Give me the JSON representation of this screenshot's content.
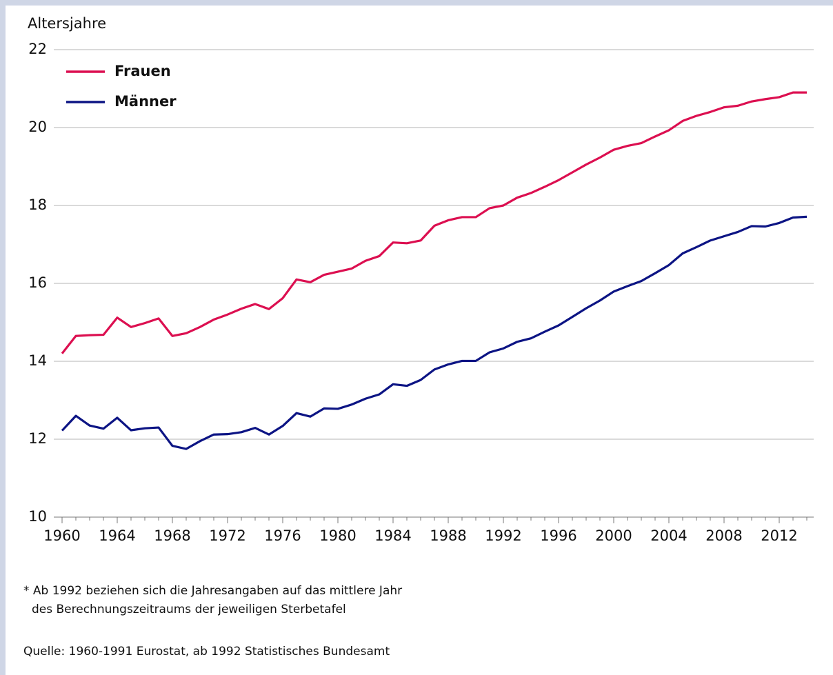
{
  "chart_data": {
    "type": "line",
    "y_label": "Altersjahre",
    "x": [
      1960,
      1961,
      1962,
      1963,
      1964,
      1965,
      1966,
      1967,
      1968,
      1969,
      1970,
      1971,
      1972,
      1973,
      1974,
      1975,
      1976,
      1977,
      1978,
      1979,
      1980,
      1981,
      1982,
      1983,
      1984,
      1985,
      1986,
      1987,
      1988,
      1989,
      1990,
      1991,
      1992,
      1993,
      1994,
      1995,
      1996,
      1997,
      1998,
      1999,
      2000,
      2001,
      2002,
      2003,
      2004,
      2005,
      2006,
      2007,
      2008,
      2009,
      2010,
      2011,
      2012,
      2013,
      2014
    ],
    "series": [
      {
        "name": "Frauen",
        "color": "#dc0f50",
        "values": [
          14.2,
          14.65,
          14.67,
          14.68,
          15.12,
          14.88,
          14.98,
          15.1,
          14.65,
          14.72,
          14.88,
          15.07,
          15.2,
          15.35,
          15.47,
          15.34,
          15.62,
          16.1,
          16.03,
          16.22,
          16.3,
          16.38,
          16.58,
          16.7,
          17.05,
          17.03,
          17.1,
          17.48,
          17.62,
          17.7,
          17.7,
          17.93,
          18.0,
          18.2,
          18.32,
          18.48,
          18.65,
          18.85,
          19.05,
          19.23,
          19.43,
          19.53,
          19.6,
          19.77,
          19.93,
          20.17,
          20.3,
          20.4,
          20.52,
          20.56,
          20.67,
          20.73,
          20.78,
          20.9,
          20.9
        ]
      },
      {
        "name": "Männer",
        "color": "#0c1484",
        "values": [
          12.22,
          12.6,
          12.35,
          12.27,
          12.55,
          12.23,
          12.28,
          12.3,
          11.83,
          11.75,
          11.95,
          12.12,
          12.13,
          12.18,
          12.29,
          12.12,
          12.34,
          12.67,
          12.58,
          12.79,
          12.78,
          12.89,
          13.04,
          13.15,
          13.41,
          13.37,
          13.52,
          13.79,
          13.92,
          14.01,
          14.01,
          14.23,
          14.33,
          14.5,
          14.59,
          14.76,
          14.92,
          15.14,
          15.36,
          15.56,
          15.79,
          15.93,
          16.06,
          16.26,
          16.47,
          16.77,
          16.93,
          17.1,
          17.21,
          17.32,
          17.47,
          17.46,
          17.55,
          17.69,
          17.71
        ]
      }
    ],
    "xlim": [
      1960,
      2014.5
    ],
    "xticks": [
      1960,
      1964,
      1968,
      1972,
      1976,
      1980,
      1984,
      1988,
      1992,
      1996,
      2000,
      2004,
      2008,
      2012
    ],
    "ylim": [
      10,
      22
    ],
    "yticks": [
      10,
      12,
      14,
      16,
      18,
      20,
      22
    ],
    "grid": true,
    "legend": "upper left",
    "notes": [
      "* Ab 1992 beziehen sich die Jahresangaben auf das mittlere Jahr",
      "des Berechnungszeitraums der jeweiligen Sterbetafel"
    ],
    "source": "Quelle: 1960-1991 Eurostat, ab 1992 Statistisches Bundesamt"
  }
}
